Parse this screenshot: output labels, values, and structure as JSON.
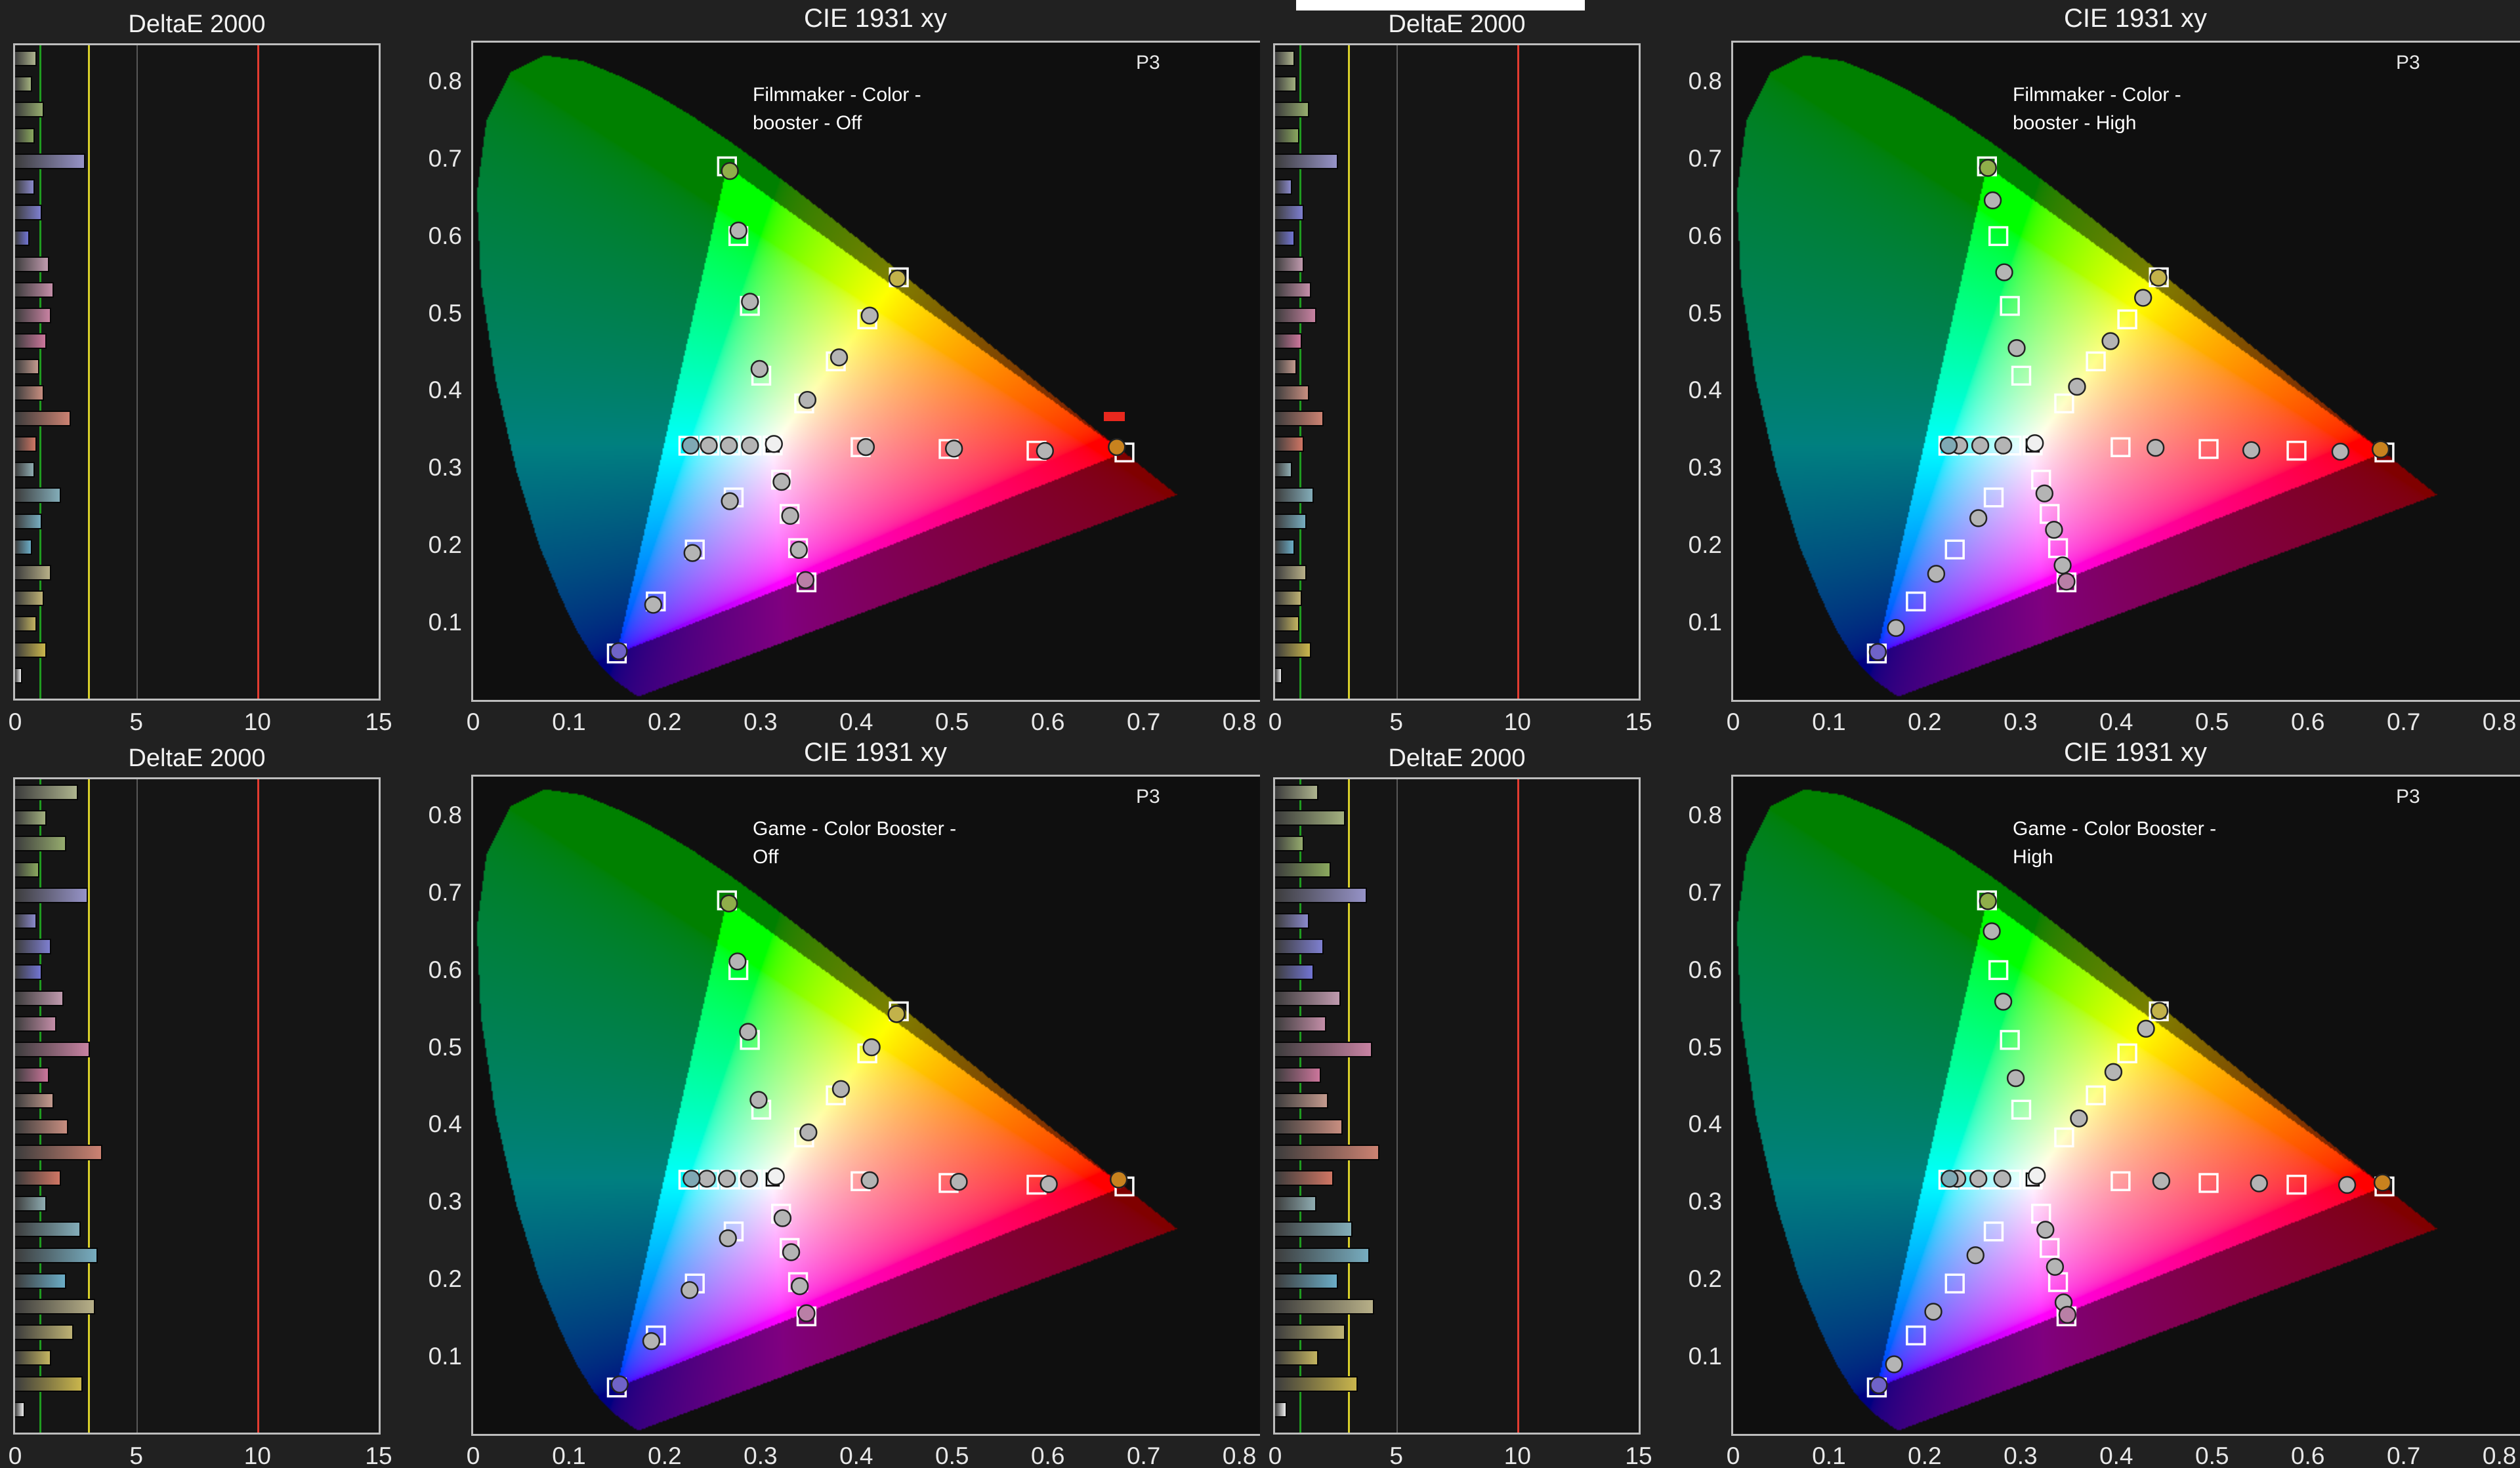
{
  "colors": {
    "page_bg": "#212121",
    "panel_bg": "#121212",
    "panel_border": "#bdbdbd",
    "text": "#f2f2f2",
    "tick_text": "#e8e8e8",
    "grid": "#585858",
    "target_stroke": "#ffffff",
    "measured_stroke": "#222222",
    "artifact_white": "#ffffff",
    "artifact_red": "#e8281e"
  },
  "cie_common": {
    "title": "CIE 1931 xy",
    "gamut_label": "P3",
    "x_ticks": [
      "0",
      "0.1",
      "0.2",
      "0.3",
      "0.4",
      "0.5",
      "0.6",
      "0.7",
      "0.8"
    ],
    "y_ticks": [
      "0.1",
      "0.2",
      "0.3",
      "0.4",
      "0.5",
      "0.6",
      "0.7",
      "0.8"
    ],
    "x_max": 0.84,
    "y_max": 0.85,
    "p3_triangle": [
      [
        0.68,
        0.32
      ],
      [
        0.265,
        0.69
      ],
      [
        0.15,
        0.06
      ]
    ],
    "spectral_locus": [
      [
        0.1741,
        0.005
      ],
      [
        0.1738,
        0.0049
      ],
      [
        0.173,
        0.0048
      ],
      [
        0.1721,
        0.0048
      ],
      [
        0.1703,
        0.0058
      ],
      [
        0.1669,
        0.0086
      ],
      [
        0.1611,
        0.0138
      ],
      [
        0.151,
        0.0227
      ],
      [
        0.144,
        0.0297
      ],
      [
        0.1355,
        0.0399
      ],
      [
        0.1241,
        0.0578
      ],
      [
        0.1096,
        0.0868
      ],
      [
        0.0913,
        0.1327
      ],
      [
        0.0687,
        0.2007
      ],
      [
        0.0454,
        0.295
      ],
      [
        0.0235,
        0.4127
      ],
      [
        0.0082,
        0.5384
      ],
      [
        0.0039,
        0.6548
      ],
      [
        0.0139,
        0.7502
      ],
      [
        0.0389,
        0.812
      ],
      [
        0.0743,
        0.8338
      ],
      [
        0.1142,
        0.8262
      ],
      [
        0.1547,
        0.8059
      ],
      [
        0.1929,
        0.7816
      ],
      [
        0.2296,
        0.7543
      ],
      [
        0.2658,
        0.7243
      ],
      [
        0.3016,
        0.6923
      ],
      [
        0.3373,
        0.6589
      ],
      [
        0.3731,
        0.6245
      ],
      [
        0.4087,
        0.5896
      ],
      [
        0.4441,
        0.5547
      ],
      [
        0.4788,
        0.5202
      ],
      [
        0.5125,
        0.4866
      ],
      [
        0.5448,
        0.4544
      ],
      [
        0.5752,
        0.4242
      ],
      [
        0.6029,
        0.3965
      ],
      [
        0.627,
        0.3725
      ],
      [
        0.6482,
        0.3514
      ],
      [
        0.6658,
        0.334
      ],
      [
        0.6801,
        0.3197
      ],
      [
        0.6915,
        0.3083
      ],
      [
        0.7006,
        0.2993
      ],
      [
        0.7079,
        0.292
      ],
      [
        0.719,
        0.2809
      ],
      [
        0.726,
        0.274
      ],
      [
        0.7347,
        0.2653
      ]
    ],
    "targets": {
      "white": [
        0.3127,
        0.329
      ],
      "red": [
        [
          0.4045,
          0.3268
        ],
        [
          0.4964,
          0.3245
        ],
        [
          0.5882,
          0.3223
        ],
        [
          0.68,
          0.32
        ]
      ],
      "green": [
        [
          0.3008,
          0.4193
        ],
        [
          0.2889,
          0.5095
        ],
        [
          0.2769,
          0.5998
        ],
        [
          0.265,
          0.69
        ]
      ],
      "blue": [
        [
          0.272,
          0.2618
        ],
        [
          0.2314,
          0.1945
        ],
        [
          0.1907,
          0.1273
        ],
        [
          0.15,
          0.06
        ]
      ],
      "cyan": [
        [
          0.2907,
          0.3289
        ],
        [
          0.2687,
          0.3289
        ],
        [
          0.2467,
          0.3288
        ],
        [
          0.2247,
          0.3287
        ]
      ],
      "magenta": [
        [
          0.3215,
          0.2848
        ],
        [
          0.3304,
          0.2405
        ],
        [
          0.3392,
          0.1963
        ],
        [
          0.348,
          0.152
        ]
      ],
      "yellow": [
        [
          0.3456,
          0.3834
        ],
        [
          0.3786,
          0.4378
        ],
        [
          0.4115,
          0.4921
        ],
        [
          0.4444,
          0.5465
        ]
      ]
    },
    "measured_fill": "#b4b4b4",
    "white_measured_fill": "#f0f0f0",
    "marker_tints_100": {
      "red": "#c8821e",
      "green": "#8fae4a",
      "blue": "#6f63c8",
      "cyan": "#7fa9b4",
      "magenta": "#b97fa6",
      "yellow": "#c2b24a"
    }
  },
  "deltae_common": {
    "title": "DeltaE 2000",
    "x_ticks": [
      "0",
      "5",
      "10",
      "15"
    ],
    "x_max": 15,
    "gridlines": [
      5,
      10
    ],
    "ref_lines": [
      {
        "value": 1,
        "color": "#1f9a1f"
      },
      {
        "value": 3,
        "color": "#d8cf2a"
      },
      {
        "value": 10,
        "color": "#e23b30"
      }
    ],
    "bar_colors": [
      "#aeb48e",
      "#a2b07e",
      "#96ac6e",
      "#8aa85e",
      "#9693c8",
      "#8a89cc",
      "#7e7fd0",
      "#7275d4",
      "#c09aae",
      "#c48ea8",
      "#c882a2",
      "#cc769c",
      "#c49a8e",
      "#c88e80",
      "#cc8272",
      "#d07664",
      "#8fadb2",
      "#83adb9",
      "#77adc0",
      "#6badc7",
      "#b8b088",
      "#beb274",
      "#c4b460",
      "#cab64c",
      "#f2f2f2"
    ]
  },
  "chart_data": [
    {
      "cie": {
        "type": "scatter",
        "title": "CIE 1931 xy",
        "annotation_line1": "Filmmaker - Color -",
        "annotation_line2": "booster - Off",
        "measured": {
          "white": [
            0.314,
            0.331
          ],
          "red": [
            [
              0.41,
              0.327
            ],
            [
              0.502,
              0.325
            ],
            [
              0.597,
              0.322
            ],
            [
              0.672,
              0.327
            ]
          ],
          "green": [
            [
              0.299,
              0.428
            ],
            [
              0.289,
              0.515
            ],
            [
              0.277,
              0.607
            ],
            [
              0.268,
              0.684
            ]
          ],
          "blue": [
            [
              0.268,
              0.257
            ],
            [
              0.229,
              0.19
            ],
            [
              0.188,
              0.123
            ],
            [
              0.152,
              0.063
            ]
          ],
          "cyan": [
            [
              0.289,
              0.329
            ],
            [
              0.267,
              0.329
            ],
            [
              0.246,
              0.329
            ],
            [
              0.227,
              0.329
            ]
          ],
          "magenta": [
            [
              0.322,
              0.282
            ],
            [
              0.331,
              0.238
            ],
            [
              0.34,
              0.194
            ],
            [
              0.347,
              0.155
            ]
          ],
          "yellow": [
            [
              0.349,
              0.388
            ],
            [
              0.382,
              0.443
            ],
            [
              0.414,
              0.497
            ],
            [
              0.443,
              0.545
            ]
          ]
        }
      },
      "deltae": {
        "type": "bar",
        "title": "DeltaE 2000",
        "values": [
          0.9,
          0.7,
          1.2,
          0.8,
          2.9,
          0.8,
          1.1,
          0.6,
          1.4,
          1.6,
          1.5,
          1.3,
          1.0,
          1.2,
          2.3,
          0.9,
          0.8,
          1.9,
          1.1,
          0.7,
          1.5,
          1.2,
          0.9,
          1.3,
          0.3
        ]
      }
    },
    {
      "cie": {
        "type": "scatter",
        "title": "CIE 1931 xy",
        "annotation_line1": "Filmmaker - Color -",
        "annotation_line2": "booster - High",
        "measured": {
          "white": [
            0.315,
            0.332
          ],
          "red": [
            [
              0.441,
              0.326
            ],
            [
              0.541,
              0.323
            ],
            [
              0.634,
              0.321
            ],
            [
              0.676,
              0.324
            ]
          ],
          "green": [
            [
              0.296,
              0.455
            ],
            [
              0.283,
              0.553
            ],
            [
              0.271,
              0.646
            ],
            [
              0.266,
              0.688
            ]
          ],
          "blue": [
            [
              0.256,
              0.235
            ],
            [
              0.212,
              0.163
            ],
            [
              0.17,
              0.093
            ],
            [
              0.151,
              0.062
            ]
          ],
          "cyan": [
            [
              0.282,
              0.329
            ],
            [
              0.258,
              0.329
            ],
            [
              0.236,
              0.329
            ],
            [
              0.225,
              0.329
            ]
          ],
          "magenta": [
            [
              0.325,
              0.267
            ],
            [
              0.335,
              0.22
            ],
            [
              0.344,
              0.174
            ],
            [
              0.348,
              0.153
            ]
          ],
          "yellow": [
            [
              0.359,
              0.405
            ],
            [
              0.394,
              0.464
            ],
            [
              0.428,
              0.52
            ],
            [
              0.444,
              0.546
            ]
          ]
        }
      },
      "deltae": {
        "type": "bar",
        "title": "DeltaE 2000",
        "values": [
          0.8,
          0.9,
          1.4,
          1.0,
          2.6,
          0.7,
          1.2,
          0.8,
          1.2,
          1.5,
          1.7,
          1.1,
          0.9,
          1.4,
          2.0,
          1.2,
          0.7,
          1.6,
          1.3,
          0.8,
          1.3,
          1.1,
          1.0,
          1.5,
          0.3
        ]
      }
    },
    {
      "cie": {
        "type": "scatter",
        "title": "CIE 1931 xy",
        "annotation_line1": "Game - Color Booster -",
        "annotation_line2": "Off",
        "measured": {
          "white": [
            0.316,
            0.333
          ],
          "red": [
            [
              0.414,
              0.328
            ],
            [
              0.507,
              0.326
            ],
            [
              0.601,
              0.323
            ],
            [
              0.674,
              0.329
            ]
          ],
          "green": [
            [
              0.298,
              0.432
            ],
            [
              0.287,
              0.52
            ],
            [
              0.276,
              0.611
            ],
            [
              0.267,
              0.686
            ]
          ],
          "blue": [
            [
              0.266,
              0.253
            ],
            [
              0.226,
              0.186
            ],
            [
              0.186,
              0.12
            ],
            [
              0.153,
              0.064
            ]
          ],
          "cyan": [
            [
              0.288,
              0.33
            ],
            [
              0.265,
              0.33
            ],
            [
              0.244,
              0.33
            ],
            [
              0.228,
              0.33
            ]
          ],
          "magenta": [
            [
              0.323,
              0.279
            ],
            [
              0.332,
              0.235
            ],
            [
              0.341,
              0.191
            ],
            [
              0.348,
              0.156
            ]
          ],
          "yellow": [
            [
              0.35,
              0.39
            ],
            [
              0.384,
              0.446
            ],
            [
              0.416,
              0.5
            ],
            [
              0.442,
              0.543
            ]
          ]
        }
      },
      "deltae": {
        "type": "bar",
        "title": "DeltaE 2000",
        "values": [
          2.6,
          1.3,
          2.1,
          1.0,
          3.0,
          0.9,
          1.5,
          1.1,
          2.0,
          1.7,
          3.1,
          1.4,
          1.6,
          2.2,
          3.6,
          1.9,
          1.3,
          2.7,
          3.4,
          2.1,
          3.3,
          2.4,
          1.5,
          2.8,
          0.4
        ]
      }
    },
    {
      "cie": {
        "type": "scatter",
        "title": "CIE 1931 xy",
        "annotation_line1": "Game - Color Booster -",
        "annotation_line2": "High",
        "measured": {
          "white": [
            0.317,
            0.334
          ],
          "red": [
            [
              0.447,
              0.327
            ],
            [
              0.549,
              0.324
            ],
            [
              0.641,
              0.322
            ],
            [
              0.678,
              0.325
            ]
          ],
          "green": [
            [
              0.295,
              0.46
            ],
            [
              0.282,
              0.559
            ],
            [
              0.27,
              0.65
            ],
            [
              0.266,
              0.689
            ]
          ],
          "blue": [
            [
              0.253,
              0.231
            ],
            [
              0.209,
              0.158
            ],
            [
              0.168,
              0.09
            ],
            [
              0.152,
              0.063
            ]
          ],
          "cyan": [
            [
              0.281,
              0.33
            ],
            [
              0.256,
              0.33
            ],
            [
              0.234,
              0.33
            ],
            [
              0.226,
              0.33
            ]
          ],
          "magenta": [
            [
              0.326,
              0.264
            ],
            [
              0.336,
              0.216
            ],
            [
              0.345,
              0.17
            ],
            [
              0.349,
              0.154
            ]
          ],
          "yellow": [
            [
              0.361,
              0.408
            ],
            [
              0.397,
              0.468
            ],
            [
              0.431,
              0.524
            ],
            [
              0.445,
              0.547
            ]
          ]
        }
      },
      "deltae": {
        "type": "bar",
        "title": "DeltaE 2000",
        "values": [
          1.8,
          2.9,
          1.2,
          2.3,
          3.8,
          1.4,
          2.0,
          1.6,
          2.7,
          2.1,
          4.0,
          1.9,
          2.2,
          2.8,
          4.3,
          2.4,
          1.7,
          3.2,
          3.9,
          2.6,
          4.1,
          2.9,
          1.8,
          3.4,
          0.5
        ]
      }
    }
  ]
}
